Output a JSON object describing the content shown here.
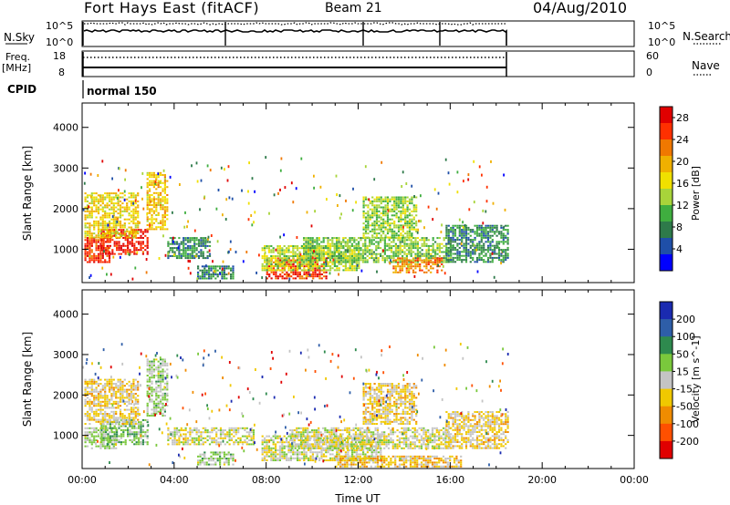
{
  "header": {
    "title": "Fort Hays East (fitACF)",
    "beam": "Beam 21",
    "date": "04/Aug/2010"
  },
  "strip_nsky": {
    "left_label": "N.Sky",
    "ticks_left": [
      "10^5",
      "10^0"
    ],
    "ticks_right": [
      "10^5",
      "10^0"
    ],
    "right_label": "N.Search"
  },
  "strip_freq": {
    "left_label_1": "Freq.",
    "left_label_2": "[MHz]",
    "ticks_left": [
      "18",
      "8"
    ],
    "ticks_right": [
      "60",
      "0"
    ],
    "right_label": "Nave"
  },
  "cpid": {
    "label": "CPID",
    "mode": "normal 150"
  },
  "chart_data": [
    {
      "type": "heatmap",
      "name": "power",
      "ylabel": "Slant Range [km]",
      "xlabel": "",
      "x_ticks": [
        "00:00",
        "04:00",
        "08:00",
        "12:00",
        "16:00",
        "20:00",
        "00:00"
      ],
      "xlim_hours": [
        0,
        24
      ],
      "ylim": [
        180,
        4600
      ],
      "y_ticks": [
        1000,
        2000,
        3000,
        4000
      ],
      "colorbar": {
        "label": "Power [dB]",
        "ticks": [
          4,
          8,
          12,
          16,
          20,
          24,
          28
        ],
        "range": [
          0,
          30
        ],
        "colors": [
          "#0000ff",
          "#1f4fa8",
          "#2e7a4a",
          "#3fae3f",
          "#a8d43a",
          "#f0e000",
          "#f0b000",
          "#f07800",
          "#ff3000",
          "#e00000"
        ]
      },
      "regions": [
        {
          "t": [
            0.1,
            1.2
          ],
          "r": [
            700,
            1300
          ],
          "level": 26
        },
        {
          "t": [
            0.8,
            2.8
          ],
          "r": [
            900,
            1500
          ],
          "level": 27
        },
        {
          "t": [
            0.1,
            2.4
          ],
          "r": [
            1300,
            2400
          ],
          "level": 17
        },
        {
          "t": [
            2.8,
            3.7
          ],
          "r": [
            1500,
            2900
          ],
          "level": 18
        },
        {
          "t": [
            3.7,
            5.6
          ],
          "r": [
            800,
            1300
          ],
          "level": 8
        },
        {
          "t": [
            5.0,
            6.6
          ],
          "r": [
            300,
            600
          ],
          "level": 8
        },
        {
          "t": [
            8.0,
            10.6
          ],
          "r": [
            300,
            800
          ],
          "level": 26
        },
        {
          "t": [
            7.8,
            12.0
          ],
          "r": [
            500,
            1100
          ],
          "level": 14
        },
        {
          "t": [
            9.6,
            16.0
          ],
          "r": [
            700,
            1300
          ],
          "level": 12
        },
        {
          "t": [
            12.2,
            14.5
          ],
          "r": [
            1300,
            2300
          ],
          "level": 13
        },
        {
          "t": [
            13.5,
            15.6
          ],
          "r": [
            450,
            800
          ],
          "level": 22
        },
        {
          "t": [
            15.8,
            18.5
          ],
          "r": [
            700,
            1600
          ],
          "level": 8
        }
      ]
    },
    {
      "type": "heatmap",
      "name": "velocity",
      "ylabel": "Slant Range [km]",
      "xlabel": "Time UT",
      "x_ticks": [
        "00:00",
        "04:00",
        "08:00",
        "12:00",
        "16:00",
        "20:00",
        "00:00"
      ],
      "xlim_hours": [
        0,
        24
      ],
      "ylim": [
        180,
        4600
      ],
      "y_ticks": [
        1000,
        2000,
        3000,
        4000
      ],
      "colorbar": {
        "label": "Velocity [m s^-1]",
        "ticks": [
          200,
          100,
          50,
          15,
          -15,
          -50,
          -100,
          -200
        ],
        "range": [
          -250,
          250
        ],
        "colors": [
          "#1a2ab0",
          "#2e5ea8",
          "#2e8a4e",
          "#7ac83c",
          "#c4c4c4",
          "#f0c800",
          "#f08c00",
          "#ff5000",
          "#e00000"
        ]
      },
      "regions": [
        {
          "t": [
            0.1,
            1.5
          ],
          "r": [
            700,
            1200
          ],
          "level": 20
        },
        {
          "t": [
            0.8,
            2.8
          ],
          "r": [
            800,
            1400
          ],
          "level": 60
        },
        {
          "t": [
            0.1,
            2.4
          ],
          "r": [
            1300,
            2400
          ],
          "level": -40
        },
        {
          "t": [
            2.8,
            3.7
          ],
          "r": [
            1500,
            2900
          ],
          "level": 30
        },
        {
          "t": [
            3.7,
            7.5
          ],
          "r": [
            800,
            1200
          ],
          "level": 0
        },
        {
          "t": [
            5.0,
            6.6
          ],
          "r": [
            300,
            600
          ],
          "level": 30
        },
        {
          "t": [
            7.8,
            13.0
          ],
          "r": [
            400,
            1000
          ],
          "level": 0
        },
        {
          "t": [
            9.0,
            16.0
          ],
          "r": [
            700,
            1200
          ],
          "level": -5
        },
        {
          "t": [
            12.2,
            14.5
          ],
          "r": [
            1300,
            2300
          ],
          "level": -40
        },
        {
          "t": [
            11.0,
            16.5
          ],
          "r": [
            250,
            500
          ],
          "level": -60
        },
        {
          "t": [
            15.8,
            18.5
          ],
          "r": [
            700,
            1600
          ],
          "level": -40
        }
      ]
    }
  ]
}
